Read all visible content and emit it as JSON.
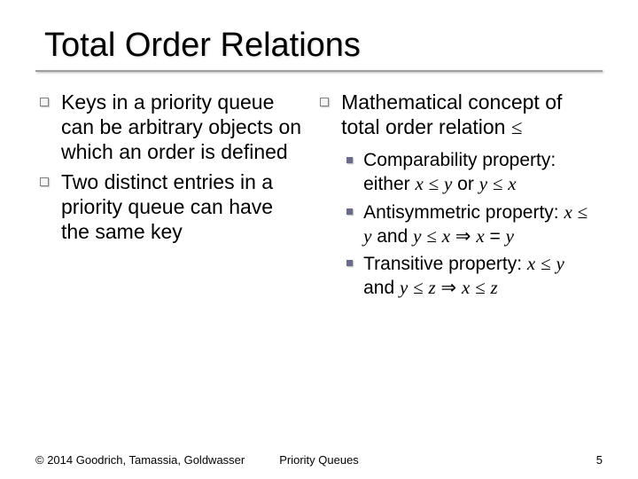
{
  "title": "Total Order Relations",
  "left": {
    "items": [
      "Keys in a priority queue can be arbitrary objects on which an order is defined",
      "Two distinct entries in a priority queue can have the same key"
    ]
  },
  "right": {
    "heading_pre": "Mathematical concept of total order relation ",
    "heading_sym": "≤",
    "props": [
      {
        "label": "Comparability property: either ",
        "m1": "x",
        "s1": "≤",
        "m2": "y",
        "mid": " or ",
        "m3": "y",
        "s2": "≤",
        "m4": "x"
      },
      {
        "label": "Antisymmetric property: ",
        "m1": "x",
        "s1": "≤",
        "m2": "y",
        "mid": " and ",
        "m3": "y",
        "s2": "≤",
        "m4": "x",
        "imp": "⇒",
        "m5": "x",
        "eq": "=",
        "m6": "y"
      },
      {
        "label": "Transitive property: ",
        "m1": "x",
        "s1": "≤",
        "m2": "y",
        "mid": " and ",
        "m3": "y",
        "s2": "≤",
        "m4": "z",
        "imp": "⇒",
        "m5": "x",
        "s3": "≤",
        "m6": "z"
      }
    ]
  },
  "footer": {
    "copyright": "© 2014 Goodrich, Tamassia, Goldwasser",
    "center": "Priority Queues",
    "page": "5"
  }
}
